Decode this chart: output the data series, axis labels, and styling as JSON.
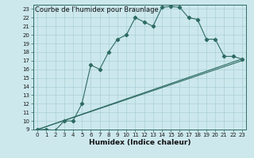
{
  "title": "Courbe de l'humidex pour Braunlage",
  "xlabel": "Humidex (Indice chaleur)",
  "xlim": [
    -0.5,
    23.5
  ],
  "ylim": [
    9,
    23.5
  ],
  "yticks": [
    9,
    10,
    11,
    12,
    13,
    14,
    15,
    16,
    17,
    18,
    19,
    20,
    21,
    22,
    23
  ],
  "xticks": [
    0,
    1,
    2,
    3,
    4,
    5,
    6,
    7,
    8,
    9,
    10,
    11,
    12,
    13,
    14,
    15,
    16,
    17,
    18,
    19,
    20,
    21,
    22,
    23
  ],
  "bg_color": "#cce8ed",
  "grid_color": "#aacfd6",
  "line_color": "#2e6b62",
  "line1_x": [
    0,
    1,
    2,
    3,
    4,
    5,
    6,
    7,
    8,
    9,
    10,
    11,
    12,
    13,
    14,
    15,
    16,
    17,
    18,
    19,
    20,
    21,
    22,
    23
  ],
  "line1_y": [
    9,
    9,
    8.9,
    10,
    10,
    12,
    16.5,
    16,
    18,
    19.5,
    20,
    22,
    21.5,
    21,
    23.2,
    23.3,
    23.2,
    22,
    21.8,
    19.5,
    19.5,
    17.5,
    17.5,
    17.2
  ],
  "line2_x": [
    0,
    23
  ],
  "line2_y": [
    9,
    17.2
  ],
  "line3_x": [
    0,
    23
  ],
  "line3_y": [
    9,
    17.0
  ],
  "line_width": 0.8,
  "marker": "D",
  "marker_size": 2.2,
  "title_fontsize": 6.0,
  "tick_fontsize": 5.0,
  "xlabel_fontsize": 6.5
}
